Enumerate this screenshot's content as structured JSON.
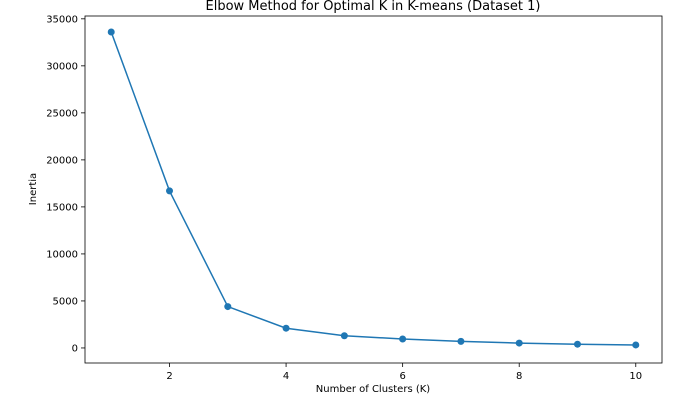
{
  "chart_data": {
    "type": "line",
    "title": "Elbow Method for Optimal K in K-means (Dataset 1)",
    "xlabel": "Number of Clusters (K)",
    "ylabel": "Inertia",
    "xlim": [
      0.55,
      10.45
    ],
    "ylim": [
      -1600,
      35300
    ],
    "xticks": [
      2,
      4,
      6,
      8,
      10
    ],
    "yticks": [
      0,
      5000,
      10000,
      15000,
      20000,
      25000,
      30000,
      35000
    ],
    "grid": false,
    "marker": "circle",
    "color": "#1f77b4",
    "series": [
      {
        "x": [
          1,
          2,
          3,
          4,
          5,
          6,
          7,
          8,
          9,
          10
        ],
        "values": [
          33600,
          16700,
          4400,
          2100,
          1300,
          950,
          700,
          520,
          400,
          320
        ]
      }
    ]
  }
}
